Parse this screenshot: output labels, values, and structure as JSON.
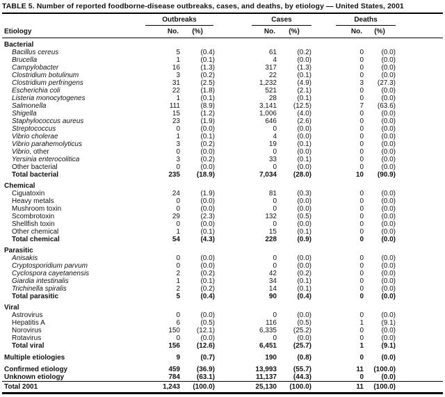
{
  "colors": {
    "background": "#ffffff",
    "text": "#111111",
    "rules": "#000000"
  },
  "table": {
    "title": "TABLE 5. Number of reported foodborne-disease outbreaks, cases, and deaths, by etiology — United States, 2001",
    "col_groups": [
      "Outbreaks",
      "Cases",
      "Deaths"
    ],
    "col_headers": {
      "etiology": "Etiology",
      "no": "No.",
      "pct": "(%)"
    }
  },
  "sections": [
    {
      "header": "Bacterial",
      "rows": [
        {
          "label_i": "Bacillus cereus",
          "label_r": "",
          "indent": true,
          "ob_no": "5",
          "ob_pct": "(0.4)",
          "cs_no": "61",
          "cs_pct": "(0.2)",
          "dt_no": "0",
          "dt_pct": "(0.0)"
        },
        {
          "label_i": "Brucella",
          "label_r": "",
          "indent": true,
          "ob_no": "1",
          "ob_pct": "(0.1)",
          "cs_no": "4",
          "cs_pct": "(0.0)",
          "dt_no": "0",
          "dt_pct": "(0.0)"
        },
        {
          "label_i": "Campylobacter",
          "label_r": "",
          "indent": true,
          "ob_no": "16",
          "ob_pct": "(1.3)",
          "cs_no": "317",
          "cs_pct": "(1.3)",
          "dt_no": "0",
          "dt_pct": "(0.0)"
        },
        {
          "label_i": "Clostridium botulinum",
          "label_r": "",
          "indent": true,
          "ob_no": "3",
          "ob_pct": "(0.2)",
          "cs_no": "22",
          "cs_pct": "(0.1)",
          "dt_no": "0",
          "dt_pct": "(0.0)"
        },
        {
          "label_i": "Clostridium perfringens",
          "label_r": "",
          "indent": true,
          "ob_no": "31",
          "ob_pct": "(2.5)",
          "cs_no": "1,232",
          "cs_pct": "(4.9)",
          "dt_no": "3",
          "dt_pct": "(27.3)"
        },
        {
          "label_i": "Escherichia coli",
          "label_r": "",
          "indent": true,
          "ob_no": "22",
          "ob_pct": "(1.8)",
          "cs_no": "521",
          "cs_pct": "(2.1)",
          "dt_no": "0",
          "dt_pct": "(0.0)"
        },
        {
          "label_i": "Listeria monocytogenes",
          "label_r": "",
          "indent": true,
          "ob_no": "1",
          "ob_pct": "(0.1)",
          "cs_no": "28",
          "cs_pct": "(0.1)",
          "dt_no": "0",
          "dt_pct": "(0.0)"
        },
        {
          "label_i": "Salmonella",
          "label_r": "",
          "indent": true,
          "ob_no": "111",
          "ob_pct": "(8.9)",
          "cs_no": "3,141",
          "cs_pct": "(12.5)",
          "dt_no": "7",
          "dt_pct": "(63.6)"
        },
        {
          "label_i": "Shigella",
          "label_r": "",
          "indent": true,
          "ob_no": "15",
          "ob_pct": "(1.2)",
          "cs_no": "1,006",
          "cs_pct": "(4.0)",
          "dt_no": "0",
          "dt_pct": "(0.0)"
        },
        {
          "label_i": "Staphylococcus aureus",
          "label_r": "",
          "indent": true,
          "ob_no": "23",
          "ob_pct": "(1.9)",
          "cs_no": "646",
          "cs_pct": "(2.6)",
          "dt_no": "0",
          "dt_pct": "(0.0)"
        },
        {
          "label_i": "Streptococcus",
          "label_r": "",
          "indent": true,
          "ob_no": "0",
          "ob_pct": "(0.0)",
          "cs_no": "0",
          "cs_pct": "(0.0)",
          "dt_no": "0",
          "dt_pct": "(0.0)"
        },
        {
          "label_i": "Vibrio cholerae",
          "label_r": "",
          "indent": true,
          "ob_no": "1",
          "ob_pct": "(0.1)",
          "cs_no": "4",
          "cs_pct": "(0.0)",
          "dt_no": "0",
          "dt_pct": "(0.0)"
        },
        {
          "label_i": "Vibrio parahemolyticus",
          "label_r": "",
          "indent": true,
          "ob_no": "3",
          "ob_pct": "(0.2)",
          "cs_no": "19",
          "cs_pct": "(0.1)",
          "dt_no": "0",
          "dt_pct": "(0.0)"
        },
        {
          "label_i": "Vibrio",
          "label_r": ", other",
          "indent": true,
          "ob_no": "0",
          "ob_pct": "(0.0)",
          "cs_no": "0",
          "cs_pct": "(0.0)",
          "dt_no": "0",
          "dt_pct": "(0.0)"
        },
        {
          "label_i": "Yersinia enterocolitica",
          "label_r": "",
          "indent": true,
          "ob_no": "3",
          "ob_pct": "(0.2)",
          "cs_no": "33",
          "cs_pct": "(0.1)",
          "dt_no": "0",
          "dt_pct": "(0.0)"
        },
        {
          "label_i": "",
          "label_r": "Other bacterial",
          "indent": true,
          "ob_no": "0",
          "ob_pct": "(0.0)",
          "cs_no": "0",
          "cs_pct": "(0.0)",
          "dt_no": "0",
          "dt_pct": "(0.0)"
        },
        {
          "label_i": "",
          "label_r": "Total bacterial",
          "indent": true,
          "bold": true,
          "ob_no": "235",
          "ob_pct": "(18.9)",
          "cs_no": "7,034",
          "cs_pct": "(28.0)",
          "dt_no": "10",
          "dt_pct": "(90.9)"
        }
      ]
    },
    {
      "header": "Chemical",
      "rows": [
        {
          "label_i": "",
          "label_r": "Ciguatoxin",
          "indent": true,
          "ob_no": "24",
          "ob_pct": "(1.9)",
          "cs_no": "81",
          "cs_pct": "(0.3)",
          "dt_no": "0",
          "dt_pct": "(0.0)"
        },
        {
          "label_i": "",
          "label_r": "Heavy metals",
          "indent": true,
          "ob_no": "0",
          "ob_pct": "(0.0)",
          "cs_no": "0",
          "cs_pct": "(0.0)",
          "dt_no": "0",
          "dt_pct": "(0.0)"
        },
        {
          "label_i": "",
          "label_r": "Mushroom toxin",
          "indent": true,
          "ob_no": "0",
          "ob_pct": "(0.0)",
          "cs_no": "0",
          "cs_pct": "(0.0)",
          "dt_no": "0",
          "dt_pct": "(0.0)"
        },
        {
          "label_i": "",
          "label_r": "Scombrotoxin",
          "indent": true,
          "ob_no": "29",
          "ob_pct": "(2.3)",
          "cs_no": "132",
          "cs_pct": "(0.5)",
          "dt_no": "0",
          "dt_pct": "(0.0)"
        },
        {
          "label_i": "",
          "label_r": "Shellfish toxin",
          "indent": true,
          "ob_no": "0",
          "ob_pct": "(0.0)",
          "cs_no": "0",
          "cs_pct": "(0.0)",
          "dt_no": "0",
          "dt_pct": "(0.0)"
        },
        {
          "label_i": "",
          "label_r": "Other chemical",
          "indent": true,
          "ob_no": "1",
          "ob_pct": "(0.1)",
          "cs_no": "15",
          "cs_pct": "(0.1)",
          "dt_no": "0",
          "dt_pct": "(0.0)"
        },
        {
          "label_i": "",
          "label_r": "Total chemical",
          "indent": true,
          "bold": true,
          "ob_no": "54",
          "ob_pct": "(4.3)",
          "cs_no": "228",
          "cs_pct": "(0.9)",
          "dt_no": "0",
          "dt_pct": "(0.0)"
        }
      ]
    },
    {
      "header": "Parasitic",
      "rows": [
        {
          "label_i": "Anisakis",
          "label_r": "",
          "indent": true,
          "ob_no": "0",
          "ob_pct": "(0.0)",
          "cs_no": "0",
          "cs_pct": "(0.0)",
          "dt_no": "0",
          "dt_pct": "(0.0)"
        },
        {
          "label_i": "Cryptosporidium parvum",
          "label_r": "",
          "indent": true,
          "ob_no": "0",
          "ob_pct": "(0.0)",
          "cs_no": "0",
          "cs_pct": "(0.0)",
          "dt_no": "0",
          "dt_pct": "(0.0)"
        },
        {
          "label_i": "Cyclospora cayetanensis",
          "label_r": "",
          "indent": true,
          "ob_no": "2",
          "ob_pct": "(0.2)",
          "cs_no": "42",
          "cs_pct": "(0.2)",
          "dt_no": "0",
          "dt_pct": "(0.0)"
        },
        {
          "label_i": "Giardia intestinalis",
          "label_r": "",
          "indent": true,
          "ob_no": "1",
          "ob_pct": "(0.1)",
          "cs_no": "34",
          "cs_pct": "(0.1)",
          "dt_no": "0",
          "dt_pct": "(0.0)"
        },
        {
          "label_i": "Trichinella spiralis",
          "label_r": "",
          "indent": true,
          "ob_no": "2",
          "ob_pct": "(0.2)",
          "cs_no": "14",
          "cs_pct": "(0.1)",
          "dt_no": "0",
          "dt_pct": "(0.0)"
        },
        {
          "label_i": "",
          "label_r": "Total parasitic",
          "indent": true,
          "bold": true,
          "ob_no": "5",
          "ob_pct": "(0.4)",
          "cs_no": "90",
          "cs_pct": "(0.4)",
          "dt_no": "0",
          "dt_pct": "(0.0)"
        }
      ]
    },
    {
      "header": "Viral",
      "rows": [
        {
          "label_i": "",
          "label_r": "Astrovirus",
          "indent": true,
          "ob_no": "0",
          "ob_pct": "(0.0)",
          "cs_no": "0",
          "cs_pct": "(0.0)",
          "dt_no": "0",
          "dt_pct": "(0.0)"
        },
        {
          "label_i": "",
          "label_r": "Hepatitis A",
          "indent": true,
          "ob_no": "6",
          "ob_pct": "(0.5)",
          "cs_no": "116",
          "cs_pct": "(0.5)",
          "dt_no": "1",
          "dt_pct": "(9.1)"
        },
        {
          "label_i": "",
          "label_r": "Norovirus",
          "indent": true,
          "ob_no": "150",
          "ob_pct": "(12.1)",
          "cs_no": "6,335",
          "cs_pct": "(25.2)",
          "dt_no": "0",
          "dt_pct": "(0.0)"
        },
        {
          "label_i": "",
          "label_r": "Rotavirus",
          "indent": true,
          "ob_no": "0",
          "ob_pct": "(0.0)",
          "cs_no": "0",
          "cs_pct": "(0.0)",
          "dt_no": "0",
          "dt_pct": "(0.0)"
        },
        {
          "label_i": "",
          "label_r": "Total viral",
          "indent": true,
          "bold": true,
          "ob_no": "156",
          "ob_pct": "(12.6)",
          "cs_no": "6,451",
          "cs_pct": "(25.7)",
          "dt_no": "1",
          "dt_pct": "(9.1)"
        }
      ]
    }
  ],
  "footer_rows": [
    {
      "label_i": "",
      "label_r": "Multiple etiologies",
      "bold": true,
      "gap": true,
      "ob_no": "9",
      "ob_pct": "(0.7)",
      "cs_no": "190",
      "cs_pct": "(0.8)",
      "dt_no": "0",
      "dt_pct": "(0.0)"
    },
    {
      "label_i": "",
      "label_r": "Confirmed etiology",
      "bold": true,
      "gap": true,
      "ob_no": "459",
      "ob_pct": "(36.9)",
      "cs_no": "13,993",
      "cs_pct": "(55.7)",
      "dt_no": "11",
      "dt_pct": "(100.0)"
    },
    {
      "label_i": "",
      "label_r": "Unknown etiology",
      "bold": true,
      "ob_no": "784",
      "ob_pct": "(63.1)",
      "cs_no": "11,137",
      "cs_pct": "(44.3)",
      "dt_no": "0",
      "dt_pct": "(0.0)"
    },
    {
      "label_i": "",
      "label_r": "Total 2001",
      "bold": true,
      "rule": true,
      "ob_no": "1,243",
      "ob_pct": "(100.0)",
      "cs_no": "25,130",
      "cs_pct": "(100.0)",
      "dt_no": "11",
      "dt_pct": "(100.0)"
    }
  ]
}
